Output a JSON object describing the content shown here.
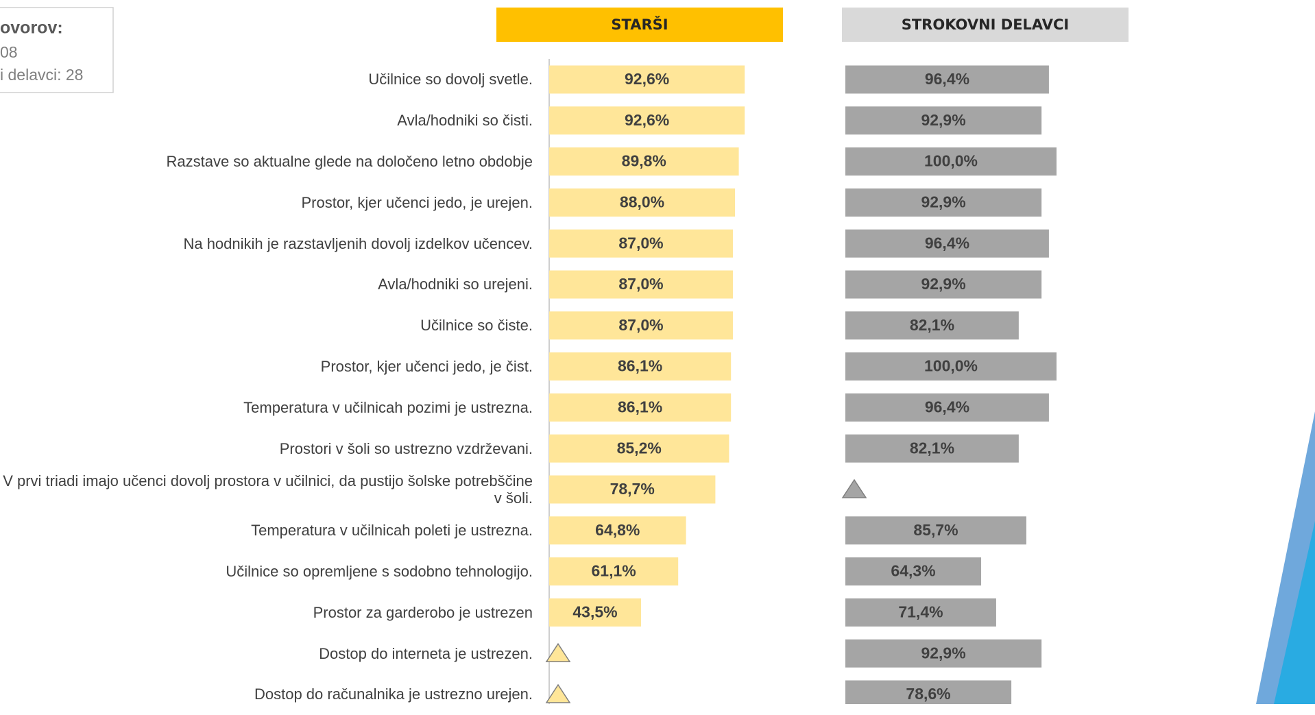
{
  "chart_data": {
    "type": "bar",
    "note": [
      "ovorov:",
      "08",
      "i delavci: 28"
    ],
    "categories": [
      "Učilnice so dovolj svetle.",
      "Avla/hodniki so čisti.",
      "Razstave so aktualne glede na določeno letno obdobje",
      "Prostor, kjer učenci jedo,  je urejen.",
      "Na hodnikih je razstavljenih dovolj izdelkov učencev.",
      "Avla/hodniki so urejeni.",
      "Učilnice so čiste.",
      "Prostor, kjer učenci jedo,  je čist.",
      "Temperatura v učilnicah pozimi je ustrezna.",
      "Prostori v šoli so ustrezno vzdrževani.",
      "V prvi triadi imajo učenci dovolj prostora v učilnici, da pustijo šolske potrebščine v šoli.",
      "Temperatura v učilnicah poleti je ustrezna.",
      "Učilnice so opremljene s sodobno tehnologijo.",
      "Prostor za garderobo je ustrezen",
      "Dostop do interneta je ustrezen.",
      "Dostop do računalnika je ustrezno urejen."
    ],
    "xlim": [
      0,
      100
    ],
    "series": [
      {
        "name": "STARŠI",
        "color": "#ffe699",
        "header_color": "#ffc000",
        "values": [
          92.6,
          92.6,
          89.8,
          88.0,
          87.0,
          87.0,
          87.0,
          86.1,
          86.1,
          85.2,
          78.7,
          64.8,
          61.1,
          43.5,
          null,
          null
        ],
        "value_labels": [
          "92,6%",
          "92,6%",
          "89,8%",
          "88,0%",
          "87,0%",
          "87,0%",
          "87,0%",
          "86,1%",
          "86,1%",
          "85,2%",
          "78,7%",
          "64,8%",
          "61,1%",
          "43,5%",
          null,
          null
        ]
      },
      {
        "name": "STROKOVNI DELAVCI",
        "color": "#a5a5a5",
        "header_color": "#d9d9d9",
        "values": [
          96.4,
          92.9,
          100.0,
          92.9,
          96.4,
          92.9,
          82.1,
          100.0,
          96.4,
          82.1,
          null,
          85.7,
          64.3,
          71.4,
          92.9,
          78.6
        ],
        "value_labels": [
          "96,4%",
          "92,9%",
          "100,0%",
          "92,9%",
          "96,4%",
          "92,9%",
          "82,1%",
          "100,0%",
          "96,4%",
          "82,1%",
          null,
          "85,7%",
          "64,3%",
          "71,4%",
          "92,9%",
          "78,6%"
        ]
      }
    ]
  }
}
